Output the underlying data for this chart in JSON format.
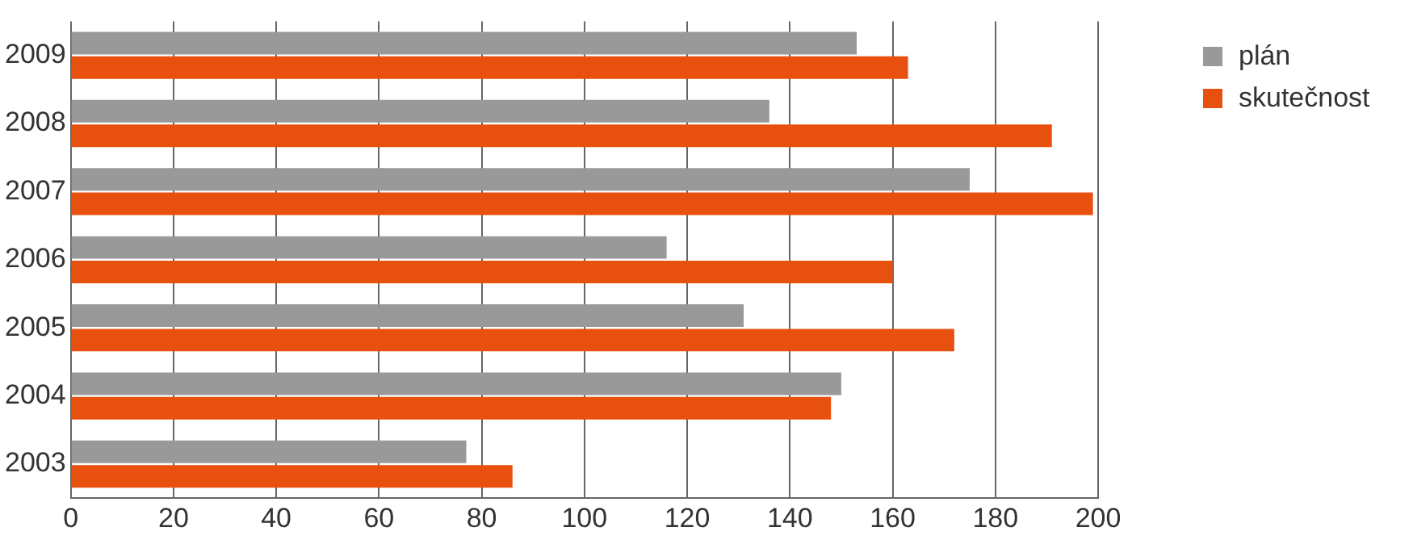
{
  "chart_data": {
    "type": "bar",
    "orientation": "horizontal",
    "categories": [
      "2009",
      "2008",
      "2007",
      "2006",
      "2005",
      "2004",
      "2003"
    ],
    "series": [
      {
        "name": "plán",
        "color": "#999999",
        "values": [
          153,
          136,
          175,
          116,
          131,
          150,
          77
        ]
      },
      {
        "name": "skutečnost",
        "color": "#e8500f",
        "values": [
          163,
          191,
          199,
          160,
          172,
          148,
          86
        ]
      }
    ],
    "xlim": [
      0,
      200
    ],
    "xticks": [
      0,
      20,
      40,
      60,
      80,
      100,
      120,
      140,
      160,
      180,
      200
    ],
    "grid": "x",
    "legend": "top right"
  }
}
